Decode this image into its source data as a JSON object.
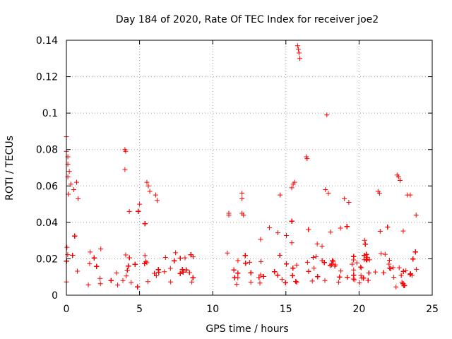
{
  "chart_data": {
    "type": "scatter",
    "title": "Day 184 of 2020, Rate Of TEC Index for receiver joe2",
    "xlabel": "GPS time / hours",
    "ylabel": "ROTI / TECUs",
    "xlim": [
      0,
      25
    ],
    "ylim": [
      0,
      0.14
    ],
    "x_ticks": [
      "0",
      "5",
      "10",
      "15",
      "20",
      "25"
    ],
    "y_ticks": [
      "0",
      "0.02",
      "0.04",
      "0.06",
      "0.08",
      "0.1",
      "0.12",
      "0.14"
    ],
    "grid": true,
    "legend": "none",
    "marker": "+",
    "colors": {
      "points": "#ff0000"
    },
    "data_gap_hours": [
      9.0,
      10.9
    ],
    "envelope_x": [
      0,
      0.3,
      0.8,
      1.5,
      2.5,
      3.5,
      4.2,
      5.0,
      5.8,
      6.5,
      7.5,
      8.5,
      9.0,
      10.9,
      12,
      13,
      14,
      15,
      15.8,
      16.5,
      17.5,
      18.5,
      19.5,
      20.5,
      21.5,
      22.5,
      23.5,
      24
    ],
    "envelope_max": [
      0.075,
      0.06,
      0.045,
      0.035,
      0.03,
      0.035,
      0.045,
      0.045,
      0.05,
      0.04,
      0.032,
      0.035,
      0.03,
      0.03,
      0.035,
      0.035,
      0.04,
      0.045,
      0.05,
      0.05,
      0.045,
      0.045,
      0.04,
      0.04,
      0.045,
      0.05,
      0.05,
      0.04
    ],
    "outliers": [
      {
        "x": 0.0,
        "y": 0.087
      },
      {
        "x": 0.0,
        "y": 0.079
      },
      {
        "x": 0.1,
        "y": 0.076
      },
      {
        "x": 0.1,
        "y": 0.072
      },
      {
        "x": 0.2,
        "y": 0.068
      },
      {
        "x": 0.1,
        "y": 0.065
      },
      {
        "x": 0.3,
        "y": 0.061
      },
      {
        "x": 0.5,
        "y": 0.058
      },
      {
        "x": 0.7,
        "y": 0.062
      },
      {
        "x": 0.8,
        "y": 0.053
      },
      {
        "x": 4.0,
        "y": 0.08
      },
      {
        "x": 4.05,
        "y": 0.079
      },
      {
        "x": 4.0,
        "y": 0.069
      },
      {
        "x": 4.3,
        "y": 0.046
      },
      {
        "x": 5.0,
        "y": 0.05
      },
      {
        "x": 5.5,
        "y": 0.062
      },
      {
        "x": 5.6,
        "y": 0.06
      },
      {
        "x": 5.7,
        "y": 0.057
      },
      {
        "x": 6.1,
        "y": 0.055
      },
      {
        "x": 6.2,
        "y": 0.052
      },
      {
        "x": 11.1,
        "y": 0.045
      },
      {
        "x": 11.1,
        "y": 0.044
      },
      {
        "x": 12.0,
        "y": 0.056
      },
      {
        "x": 12.0,
        "y": 0.053
      },
      {
        "x": 12.0,
        "y": 0.045
      },
      {
        "x": 12.1,
        "y": 0.044
      },
      {
        "x": 14.6,
        "y": 0.055
      },
      {
        "x": 15.5,
        "y": 0.061
      },
      {
        "x": 15.6,
        "y": 0.062
      },
      {
        "x": 15.4,
        "y": 0.059
      },
      {
        "x": 15.8,
        "y": 0.137
      },
      {
        "x": 15.85,
        "y": 0.135
      },
      {
        "x": 15.9,
        "y": 0.133
      },
      {
        "x": 15.95,
        "y": 0.13
      },
      {
        "x": 16.4,
        "y": 0.076
      },
      {
        "x": 16.45,
        "y": 0.075
      },
      {
        "x": 17.8,
        "y": 0.099
      },
      {
        "x": 17.7,
        "y": 0.058
      },
      {
        "x": 17.9,
        "y": 0.056
      },
      {
        "x": 19.0,
        "y": 0.053
      },
      {
        "x": 19.3,
        "y": 0.051
      },
      {
        "x": 22.6,
        "y": 0.066
      },
      {
        "x": 22.7,
        "y": 0.065
      },
      {
        "x": 22.8,
        "y": 0.063
      },
      {
        "x": 21.3,
        "y": 0.057
      },
      {
        "x": 21.4,
        "y": 0.056
      },
      {
        "x": 23.3,
        "y": 0.055
      },
      {
        "x": 23.5,
        "y": 0.055
      },
      {
        "x": 23.9,
        "y": 0.044
      }
    ]
  }
}
